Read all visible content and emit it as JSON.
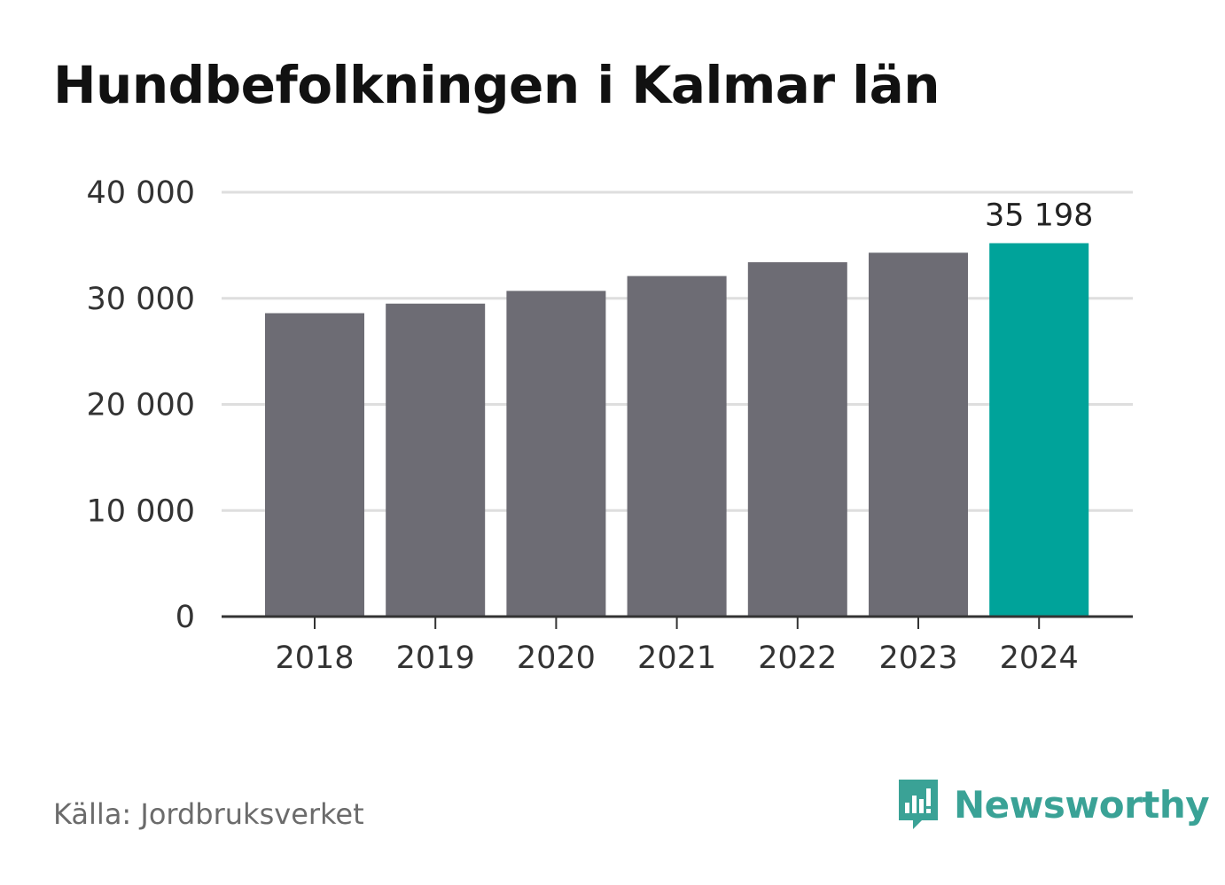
{
  "colors": {
    "bar": "#6d6c74",
    "highlight": "#00a39a",
    "grid": "#dedede",
    "axis": "#333333",
    "brand": "#3aa296"
  },
  "chart_data": {
    "type": "bar",
    "title": "Hundbefolkningen i Kalmar län",
    "xlabel": "",
    "ylabel": "",
    "ylim": [
      0,
      40000
    ],
    "yticks": [
      0,
      10000,
      20000,
      30000,
      40000
    ],
    "ytick_labels": [
      "0",
      "10 000",
      "20 000",
      "30 000",
      "40 000"
    ],
    "grid": true,
    "categories": [
      "2018",
      "2019",
      "2020",
      "2021",
      "2022",
      "2023",
      "2024"
    ],
    "values": [
      28600,
      29500,
      30700,
      32100,
      33400,
      34300,
      35198
    ],
    "highlight_index": 6,
    "data_labels": [
      {
        "index": 6,
        "text": "35 198"
      }
    ]
  },
  "footer": {
    "source": "Källa: Jordbruksverket",
    "brand_name": "Newsworthy",
    "brand_icon": "newsworthy-logo-icon"
  }
}
